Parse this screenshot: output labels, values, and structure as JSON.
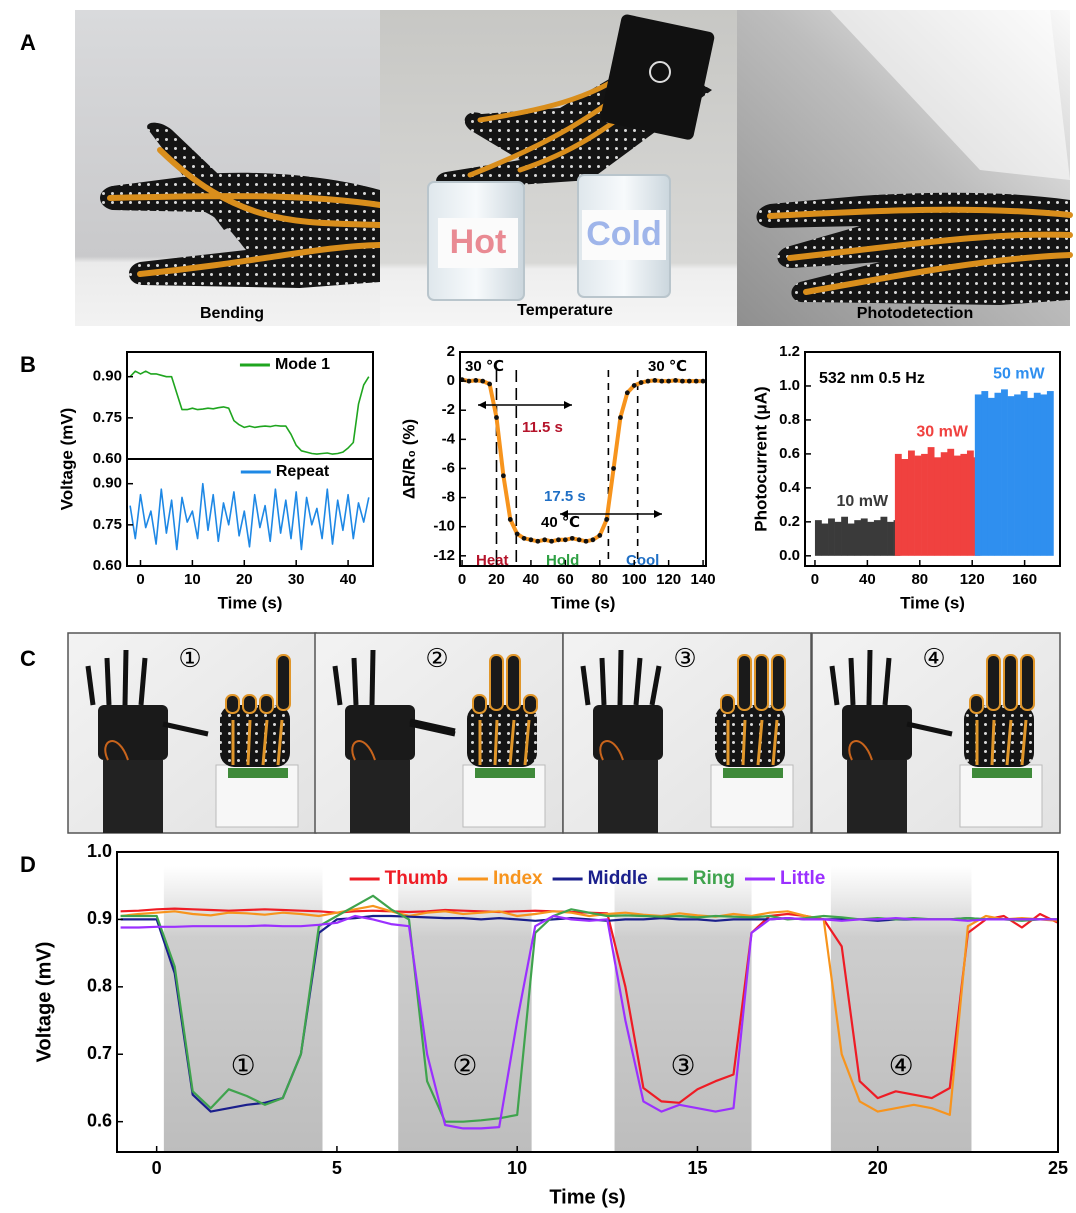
{
  "panel_labels": [
    "A",
    "B",
    "C",
    "D"
  ],
  "panel_a": {
    "captions": [
      "Bending",
      "Temperature",
      "Photodetection"
    ],
    "beaker_labels": [
      "Hot",
      "Cold"
    ]
  },
  "panel_c": {
    "labels": [
      "①",
      "②",
      "③",
      "④"
    ]
  },
  "chart_data": [
    {
      "type": "line",
      "xlabel": "Time (s)",
      "ylabel": "Voltage (mV)",
      "x": [
        -2,
        -1,
        0,
        1,
        2,
        3,
        4,
        5,
        6,
        7,
        8,
        9,
        10,
        11,
        12,
        13,
        14,
        15,
        16,
        17,
        18,
        19,
        20,
        21,
        22,
        23,
        24,
        25,
        26,
        27,
        28,
        29,
        30,
        31,
        32,
        33,
        34,
        35,
        36,
        37,
        38,
        39,
        40,
        41,
        42,
        43,
        44
      ],
      "xlim": [
        -2.6,
        44.8
      ],
      "xticks": [
        0,
        10,
        20,
        30,
        40
      ],
      "panels": [
        {
          "ylim": [
            0.6,
            0.99
          ],
          "yticks": [
            {
              "value": 0.6,
              "label": "0.60"
            },
            0.75,
            {
              "value": 0.9,
              "label": "0.90"
            }
          ],
          "series": [
            {
              "name": "Mode 1",
              "color": "#1fa51f",
              "values": [
                0.9,
                0.92,
                0.91,
                0.92,
                0.91,
                0.91,
                0.905,
                0.9,
                0.9,
                0.84,
                0.78,
                0.78,
                0.785,
                0.78,
                0.782,
                0.785,
                0.783,
                0.787,
                0.79,
                0.785,
                0.74,
                0.725,
                0.715,
                0.72,
                0.715,
                0.718,
                0.72,
                0.718,
                0.722,
                0.72,
                0.72,
                0.69,
                0.65,
                0.63,
                0.625,
                0.62,
                0.618,
                0.62,
                0.622,
                0.618,
                0.62,
                0.625,
                0.64,
                0.66,
                0.8,
                0.87,
                0.9
              ]
            }
          ]
        },
        {
          "ylim": [
            0.6,
            0.99
          ],
          "yticks": [
            {
              "value": 0.6,
              "label": "0.60"
            },
            0.75,
            {
              "value": 0.9,
              "label": "0.90"
            }
          ],
          "series": [
            {
              "name": "Repeat",
              "color": "#1e88e5",
              "values": [
                0.82,
                0.7,
                0.86,
                0.74,
                0.8,
                0.68,
                0.88,
                0.72,
                0.84,
                0.66,
                0.85,
                0.76,
                0.8,
                0.7,
                0.9,
                0.73,
                0.86,
                0.69,
                0.83,
                0.75,
                0.87,
                0.71,
                0.8,
                0.67,
                0.86,
                0.74,
                0.82,
                0.69,
                0.88,
                0.72,
                0.84,
                0.7,
                0.87,
                0.66,
                0.85,
                0.75,
                0.81,
                0.7,
                0.88,
                0.68,
                0.84,
                0.73,
                0.86,
                0.7,
                0.83,
                0.76,
                0.85
              ]
            }
          ]
        }
      ]
    },
    {
      "type": "line",
      "xlabel": "Time (s)",
      "ylabel": "ΔR/R₀ (%)",
      "x": [
        0,
        4,
        8,
        12,
        16,
        20,
        24,
        28,
        32,
        36,
        40,
        44,
        48,
        52,
        56,
        60,
        64,
        68,
        72,
        76,
        80,
        84,
        88,
        92,
        96,
        100,
        104,
        108,
        112,
        116,
        120,
        124,
        128,
        132,
        136,
        140
      ],
      "xlim": [
        -1.2,
        141.7
      ],
      "xticks": [
        0,
        20,
        40,
        60,
        80,
        100,
        120,
        140
      ],
      "ylim": [
        -12.7,
        2
      ],
      "yticks": [
        2,
        0,
        -2,
        -4,
        -6,
        -8,
        -10,
        -12
      ],
      "series": [
        {
          "color": "#f7941d",
          "marker_color": "#111111",
          "values": [
            0.1,
            0,
            0.05,
            0,
            -0.2,
            -2.5,
            -6.5,
            -9.5,
            -10.5,
            -10.8,
            -10.9,
            -11,
            -10.9,
            -11,
            -10.9,
            -10.9,
            -10.8,
            -10.9,
            -11,
            -10.9,
            -10.6,
            -9.5,
            -6,
            -2.5,
            -0.8,
            -0.3,
            -0.1,
            0,
            0.05,
            0,
            0,
            0.05,
            0,
            0,
            0,
            0
          ]
        }
      ],
      "vlines": [
        20,
        31.5,
        85,
        102
      ],
      "annotations": [
        {
          "text": "30 ℃",
          "color": "#000000"
        },
        {
          "text": "30 ℃",
          "color": "#000000"
        },
        {
          "text": "11.5 s",
          "color": "#b5142b"
        },
        {
          "text": "17.5 s",
          "color": "#1f6fc5"
        },
        {
          "text": "40 ℃",
          "color": "#000000"
        },
        {
          "text": "Heat",
          "color": "#b5142b"
        },
        {
          "text": "Hold",
          "color": "#2ea043"
        },
        {
          "text": "Cool",
          "color": "#1f6fc5"
        }
      ]
    },
    {
      "type": "bar",
      "xlabel": "Time (s)",
      "ylabel": "Photocurrent (μA)",
      "annotation": "532 nm 0.5 Hz",
      "xlim": [
        -7.6,
        187
      ],
      "xticks": [
        0,
        40,
        80,
        120,
        160
      ],
      "ylim": [
        -0.06,
        1.2
      ],
      "yticks": [
        {
          "value": 0,
          "label": "0.0"
        },
        0.2,
        0.4,
        0.6,
        0.8,
        {
          "value": 1,
          "label": "1.0"
        },
        1.2
      ],
      "series": [
        {
          "name": "10 mW",
          "color": "#3a3a3a",
          "x": [
            0,
            5,
            10,
            15,
            20,
            25,
            30,
            35,
            40,
            45,
            50,
            55,
            60
          ],
          "values": [
            0.21,
            0.19,
            0.22,
            0.2,
            0.23,
            0.19,
            0.21,
            0.22,
            0.2,
            0.21,
            0.23,
            0.2,
            0.21
          ]
        },
        {
          "name": "30 mW",
          "color": "#f0413f",
          "x": [
            61,
            66,
            71,
            76,
            81,
            86,
            91,
            96,
            101,
            106,
            111,
            116,
            121
          ],
          "values": [
            0.6,
            0.57,
            0.62,
            0.59,
            0.6,
            0.64,
            0.58,
            0.61,
            0.63,
            0.59,
            0.6,
            0.62,
            0.58
          ]
        },
        {
          "name": "50 mW",
          "color": "#2f8fef",
          "x": [
            122,
            127,
            132,
            137,
            142,
            147,
            152,
            157,
            162,
            167,
            172,
            177
          ],
          "values": [
            0.95,
            0.97,
            0.93,
            0.96,
            0.98,
            0.94,
            0.95,
            0.97,
            0.93,
            0.96,
            0.95,
            0.97
          ]
        }
      ]
    },
    {
      "type": "line",
      "xlabel": "Time (s)",
      "ylabel": "Voltage (mV)",
      "x": [
        -1,
        -0.5,
        0,
        0.5,
        1,
        1.5,
        2,
        2.5,
        3,
        3.5,
        4,
        4.5,
        5,
        5.5,
        6,
        6.5,
        7,
        7.5,
        8,
        8.5,
        9,
        9.5,
        10,
        10.5,
        11,
        11.5,
        12,
        12.5,
        13,
        13.5,
        14,
        14.5,
        15,
        15.5,
        16,
        16.5,
        17,
        17.5,
        18,
        18.5,
        19,
        19.5,
        20,
        20.5,
        21,
        21.5,
        22,
        22.5,
        23,
        23.5,
        24,
        24.5,
        25
      ],
      "xlim": [
        -1.1,
        25
      ],
      "xticks": [
        0,
        5,
        10,
        15,
        20,
        25
      ],
      "ylim": [
        0.555,
        1.0
      ],
      "yticks": [
        0.6,
        0.7,
        0.8,
        0.9,
        {
          "value": 1,
          "label": "1.0"
        }
      ],
      "shaded": [
        [
          0.2,
          4.6
        ],
        [
          6.7,
          10.4
        ],
        [
          12.7,
          16.5
        ],
        [
          18.7,
          22.6
        ]
      ],
      "region_labels": [
        "①",
        "②",
        "③",
        "④"
      ],
      "series": [
        {
          "name": "Thumb",
          "color": "#ee1c25",
          "values": [
            0.912,
            0.913,
            0.915,
            0.916,
            0.915,
            0.914,
            0.913,
            0.914,
            0.915,
            0.914,
            0.913,
            0.912,
            0.91,
            0.912,
            0.913,
            0.912,
            0.911,
            0.912,
            0.914,
            0.913,
            0.912,
            0.911,
            0.912,
            0.913,
            0.912,
            0.911,
            0.91,
            0.909,
            0.8,
            0.65,
            0.63,
            0.628,
            0.648,
            0.66,
            0.67,
            0.88,
            0.905,
            0.908,
            0.905,
            0.9,
            0.86,
            0.66,
            0.635,
            0.645,
            0.64,
            0.635,
            0.65,
            0.88,
            0.9,
            0.905,
            0.888,
            0.908,
            0.895
          ]
        },
        {
          "name": "Index",
          "color": "#f7941d",
          "values": [
            0.905,
            0.908,
            0.91,
            0.912,
            0.908,
            0.906,
            0.91,
            0.909,
            0.907,
            0.91,
            0.908,
            0.905,
            0.91,
            0.915,
            0.92,
            0.912,
            0.905,
            0.91,
            0.912,
            0.908,
            0.91,
            0.912,
            0.905,
            0.908,
            0.912,
            0.91,
            0.905,
            0.908,
            0.91,
            0.907,
            0.905,
            0.909,
            0.906,
            0.904,
            0.908,
            0.905,
            0.91,
            0.912,
            0.905,
            0.9,
            0.7,
            0.63,
            0.615,
            0.62,
            0.625,
            0.62,
            0.61,
            0.89,
            0.905,
            0.9,
            0.902,
            0.9,
            0.898
          ]
        },
        {
          "name": "Middle",
          "color": "#1a1f8c",
          "values": [
            0.9,
            0.9,
            0.9,
            0.82,
            0.64,
            0.615,
            0.62,
            0.625,
            0.628,
            0.635,
            0.7,
            0.88,
            0.9,
            0.902,
            0.905,
            0.905,
            0.904,
            0.903,
            0.902,
            0.902,
            0.9,
            0.902,
            0.9,
            0.898,
            0.9,
            0.902,
            0.9,
            0.898,
            0.9,
            0.9,
            0.902,
            0.9,
            0.9,
            0.898,
            0.9,
            0.9,
            0.9,
            0.902,
            0.9,
            0.9,
            0.9,
            0.9,
            0.898,
            0.9,
            0.9,
            0.9,
            0.9,
            0.902,
            0.9,
            0.9,
            0.9,
            0.9,
            0.9
          ]
        },
        {
          "name": "Ring",
          "color": "#3fa34d",
          "values": [
            0.905,
            0.905,
            0.905,
            0.83,
            0.645,
            0.62,
            0.648,
            0.638,
            0.625,
            0.635,
            0.7,
            0.89,
            0.905,
            0.92,
            0.935,
            0.915,
            0.9,
            0.66,
            0.6,
            0.6,
            0.602,
            0.605,
            0.61,
            0.88,
            0.905,
            0.915,
            0.91,
            0.905,
            0.906,
            0.905,
            0.904,
            0.905,
            0.903,
            0.905,
            0.904,
            0.903,
            0.905,
            0.9,
            0.902,
            0.905,
            0.903,
            0.9,
            0.902,
            0.9,
            0.902,
            0.9,
            0.9,
            0.902,
            0.9,
            0.9,
            0.898,
            0.9,
            0.9
          ]
        },
        {
          "name": "Little",
          "color": "#9b30ff",
          "values": [
            0.888,
            0.888,
            0.889,
            0.889,
            0.89,
            0.89,
            0.89,
            0.89,
            0.891,
            0.89,
            0.89,
            0.892,
            0.895,
            0.905,
            0.9,
            0.893,
            0.89,
            0.7,
            0.595,
            0.59,
            0.59,
            0.592,
            0.75,
            0.89,
            0.905,
            0.9,
            0.898,
            0.9,
            0.75,
            0.63,
            0.615,
            0.625,
            0.62,
            0.615,
            0.62,
            0.88,
            0.9,
            0.902,
            0.9,
            0.9,
            0.898,
            0.9,
            0.9,
            0.902,
            0.9,
            0.9,
            0.9,
            0.898,
            0.9,
            0.9,
            0.9,
            0.9,
            0.9
          ]
        }
      ]
    }
  ]
}
